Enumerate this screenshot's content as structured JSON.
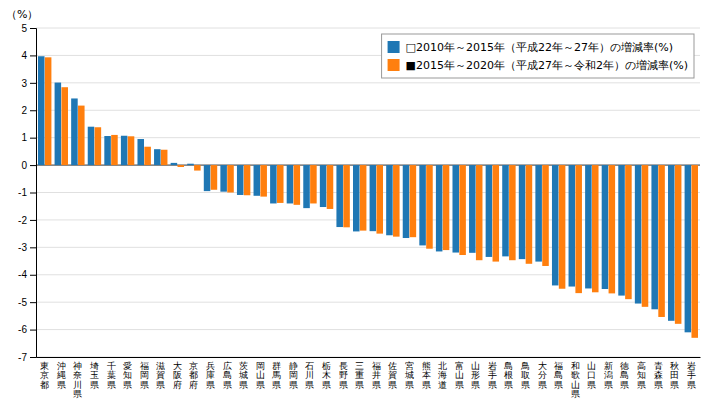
{
  "chart_data": {
    "type": "bar",
    "y_label": "（%）",
    "categories": [
      "東\n京\n都",
      "沖\n縄\n県",
      "神\n奈\n川\n県",
      "埼\n玉\n県",
      "千\n葉\n県",
      "愛\n知\n県",
      "福\n岡\n県",
      "滋\n賀\n県",
      "大\n阪\n府",
      "京\n都\n府",
      "兵\n庫\n県",
      "広\n島\n県",
      "茨\n城\n県",
      "岡\n山\n県",
      "群\n馬\n県",
      "静\n岡\n県",
      "石\n川\n県",
      "栃\n木\n県",
      "長\n野\n県",
      "三\n重\n県",
      "福\n井\n県",
      "佐\n賀\n県",
      "宮\n城\n県",
      "熊\n本\n県",
      "北\n海\n道",
      "富\n山\n県",
      "山\n形\n県",
      "岩\n手\n県",
      "島\n根\n県",
      "鳥\n取\n県",
      "大\n分\n県",
      "福\n島\n県",
      "和\n歌\n山\n県",
      "山\n口\n県",
      "新\n潟\n県",
      "徳\n島\n県",
      "高\n知\n県",
      "青\n森\n県",
      "秋\n田\n県",
      "岩\n手\n県"
    ],
    "series": [
      {
        "name": "□2010年～2015年（平成22年～27年）の増減率(%)",
        "values": [
          3.97,
          3.01,
          2.43,
          1.4,
          1.06,
          1.07,
          0.95,
          0.58,
          0.08,
          0.05,
          -0.95,
          -0.97,
          -1.09,
          -1.12,
          -1.4,
          -1.4,
          -1.57,
          -1.53,
          -2.26,
          -2.42,
          -2.41,
          -2.56,
          -2.66,
          -2.93,
          -3.15,
          -3.19,
          -3.2,
          -3.35,
          -3.33,
          -3.43,
          -3.52,
          -4.39,
          -4.43,
          -4.5,
          -4.52,
          -4.76,
          -5.05,
          -5.26,
          -5.68,
          -6.1
        ]
      },
      {
        "name": "■2015年～2020年（平成27年～令和2年）の増減率(%)",
        "values": [
          3.93,
          2.84,
          2.17,
          1.38,
          1.1,
          1.05,
          0.67,
          0.56,
          -0.07,
          -0.2,
          -0.9,
          -1.0,
          -1.1,
          -1.15,
          -1.38,
          -1.45,
          -1.4,
          -1.6,
          -2.27,
          -2.39,
          -2.5,
          -2.61,
          -2.63,
          -3.05,
          -3.1,
          -3.28,
          -3.47,
          -3.52,
          -3.47,
          -3.6,
          -3.68,
          -4.51,
          -4.67,
          -4.64,
          -4.68,
          -4.89,
          -5.17,
          -5.54,
          -5.79,
          -6.3
        ]
      }
    ],
    "ylim": [
      -7,
      5
    ],
    "yticks": [
      -7,
      -6,
      -5,
      -4,
      -3,
      -2,
      -1,
      0,
      1,
      2,
      3,
      4,
      5
    ],
    "grid": true,
    "legend": "upper right"
  }
}
